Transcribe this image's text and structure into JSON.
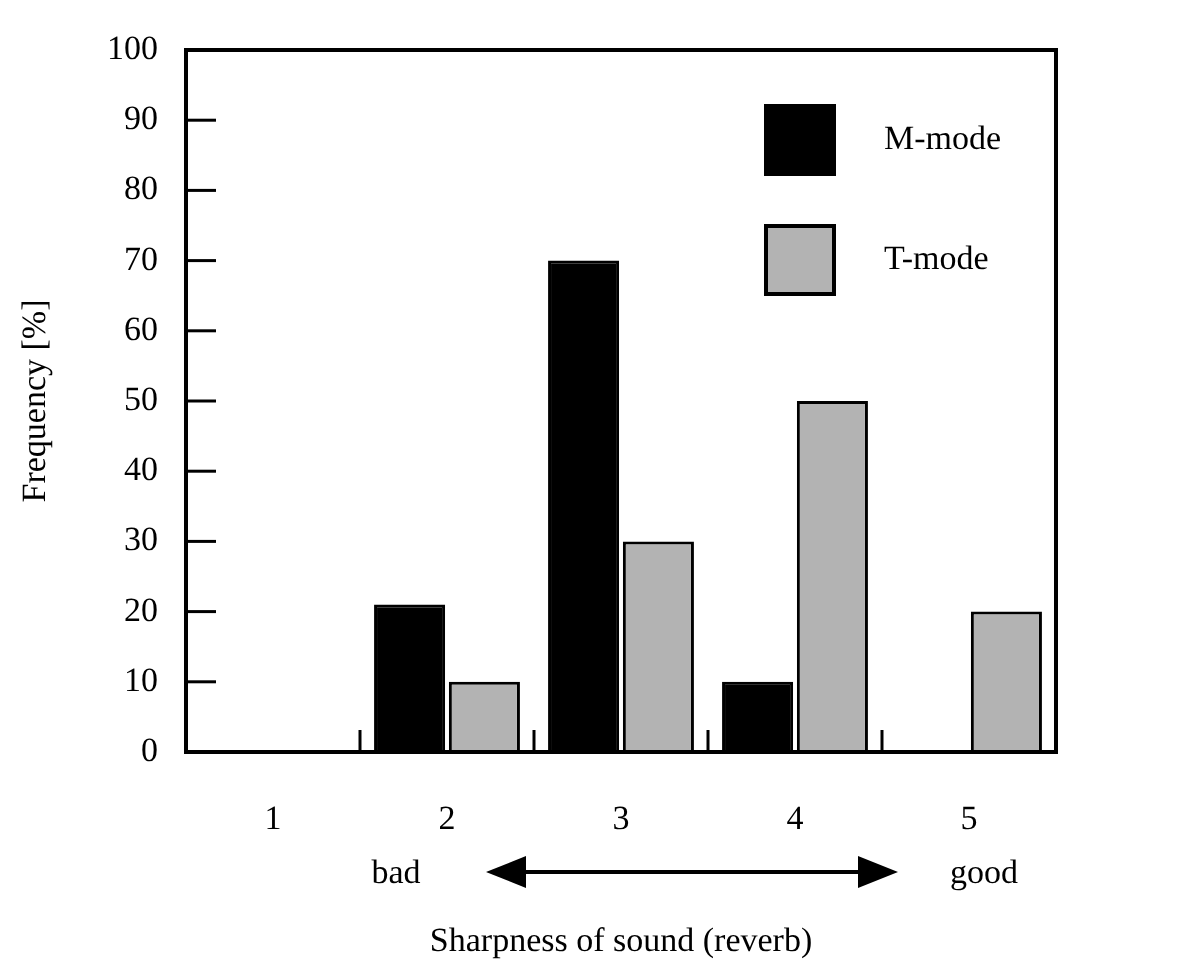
{
  "chart_data": {
    "type": "bar",
    "xlabel": "Sharpness of sound (reverb)",
    "ylabel": "Frequency [%]",
    "categories": [
      "1",
      "2",
      "3",
      "4",
      "5"
    ],
    "series": [
      {
        "name": "M-mode",
        "color": "#000000",
        "values": [
          0,
          21,
          70,
          10,
          0
        ]
      },
      {
        "name": "T-mode",
        "color": "#b3b3b3",
        "values": [
          0,
          10,
          30,
          50,
          20
        ]
      }
    ],
    "ylim": [
      0,
      100
    ],
    "yticks": [
      0,
      10,
      20,
      30,
      40,
      50,
      60,
      70,
      80,
      90,
      100
    ],
    "grid": false,
    "legend": "top right",
    "annotations": [
      "bad",
      "good"
    ]
  }
}
